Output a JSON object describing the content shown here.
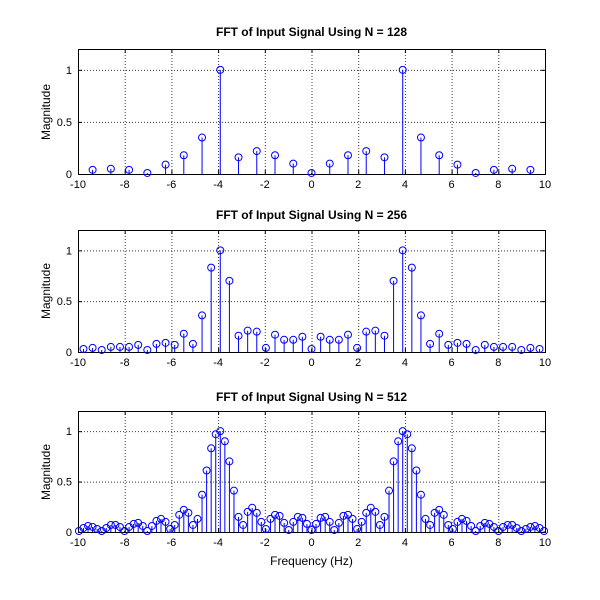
{
  "figure": {
    "background": "#ffffff",
    "axis_color": "#000000",
    "grid_color": "#3a3a3a",
    "stem_color": "#0000ff"
  },
  "chart_data": [
    {
      "type": "stem",
      "title": "FFT of Input Signal Using N = 128",
      "xlabel": "",
      "ylabel": "Magnitude",
      "xlim": [
        -10,
        10
      ],
      "ylim": [
        0,
        1.2
      ],
      "xticks": [
        -10,
        -8,
        -6,
        -4,
        -2,
        0,
        2,
        4,
        6,
        8,
        10
      ],
      "yticks": [
        0,
        0.5,
        1
      ],
      "grid": true,
      "x": [
        -9.375,
        -8.5938,
        -7.8125,
        -7.0313,
        -6.25,
        -5.4688,
        -4.6875,
        -3.9063,
        -3.125,
        -2.3438,
        -1.5625,
        -0.7813,
        0,
        0.7813,
        1.5625,
        2.3438,
        3.125,
        3.9063,
        4.6875,
        5.4688,
        6.25,
        7.0313,
        7.8125,
        8.5938,
        9.375
      ],
      "y": [
        0.04,
        0.05,
        0.04,
        0.01,
        0.09,
        0.18,
        0.35,
        1.0,
        0.16,
        0.22,
        0.18,
        0.1,
        0.01,
        0.1,
        0.18,
        0.22,
        0.16,
        1.0,
        0.35,
        0.18,
        0.09,
        0.01,
        0.04,
        0.05,
        0.04
      ]
    },
    {
      "type": "stem",
      "title": "FFT of Input Signal Using N = 256",
      "xlabel": "",
      "ylabel": "Magnitude",
      "xlim": [
        -10,
        10
      ],
      "ylim": [
        0,
        1.2
      ],
      "xticks": [
        -10,
        -8,
        -6,
        -4,
        -2,
        0,
        2,
        4,
        6,
        8,
        10
      ],
      "yticks": [
        0,
        0.5,
        1
      ],
      "grid": true,
      "x": [
        -9.7656,
        -9.375,
        -8.9844,
        -8.5938,
        -8.2031,
        -7.8125,
        -7.4219,
        -7.0313,
        -6.6406,
        -6.25,
        -5.8594,
        -5.4688,
        -5.0781,
        -4.6875,
        -4.2969,
        -3.9063,
        -3.5156,
        -3.125,
        -2.7344,
        -2.3438,
        -1.9531,
        -1.5625,
        -1.1719,
        -0.7813,
        -0.3906,
        0,
        0.3906,
        0.7813,
        1.1719,
        1.5625,
        1.9531,
        2.3438,
        2.7344,
        3.125,
        3.5156,
        3.9063,
        4.2969,
        4.6875,
        5.0781,
        5.4688,
        5.8594,
        6.25,
        6.6406,
        7.0313,
        7.4219,
        7.8125,
        8.2031,
        8.5938,
        8.9844,
        9.375,
        9.7656
      ],
      "y": [
        0.03,
        0.04,
        0.02,
        0.05,
        0.05,
        0.05,
        0.07,
        0.02,
        0.08,
        0.09,
        0.07,
        0.18,
        0.08,
        0.36,
        0.83,
        1.0,
        0.7,
        0.16,
        0.21,
        0.2,
        0.04,
        0.17,
        0.12,
        0.12,
        0.15,
        0.03,
        0.15,
        0.12,
        0.12,
        0.17,
        0.04,
        0.2,
        0.21,
        0.16,
        0.7,
        1.0,
        0.83,
        0.36,
        0.08,
        0.18,
        0.07,
        0.09,
        0.08,
        0.02,
        0.07,
        0.05,
        0.05,
        0.05,
        0.02,
        0.04,
        0.03
      ]
    },
    {
      "type": "stem",
      "title": "FFT of Input Signal Using N = 512",
      "xlabel": "Frequency (Hz)",
      "ylabel": "Magnitude",
      "xlim": [
        -10,
        10
      ],
      "ylim": [
        0,
        1.2
      ],
      "xticks": [
        -10,
        -8,
        -6,
        -4,
        -2,
        0,
        2,
        4,
        6,
        8,
        10
      ],
      "yticks": [
        0,
        0.5,
        1
      ],
      "grid": true,
      "x": [
        -9.9609,
        -9.7656,
        -9.5703,
        -9.375,
        -9.1797,
        -8.9844,
        -8.7891,
        -8.5938,
        -8.3984,
        -8.2031,
        -8.0078,
        -7.8125,
        -7.6172,
        -7.4219,
        -7.2266,
        -7.0313,
        -6.8359,
        -6.6406,
        -6.4453,
        -6.25,
        -6.0547,
        -5.8594,
        -5.6641,
        -5.4688,
        -5.2734,
        -5.0781,
        -4.8828,
        -4.6875,
        -4.4922,
        -4.2969,
        -4.1016,
        -3.9063,
        -3.7109,
        -3.5156,
        -3.3203,
        -3.125,
        -2.9297,
        -2.7344,
        -2.5391,
        -2.3438,
        -2.1484,
        -1.9531,
        -1.7578,
        -1.5625,
        -1.3672,
        -1.1719,
        -0.9766,
        -0.7813,
        -0.5859,
        -0.3906,
        -0.1953,
        0,
        0.1953,
        0.3906,
        0.5859,
        0.7813,
        0.9766,
        1.1719,
        1.3672,
        1.5625,
        1.7578,
        1.9531,
        2.1484,
        2.3438,
        2.5391,
        2.7344,
        2.9297,
        3.125,
        3.3203,
        3.5156,
        3.7109,
        3.9063,
        4.1016,
        4.2969,
        4.4922,
        4.6875,
        4.8828,
        5.0781,
        5.2734,
        5.4688,
        5.6641,
        5.8594,
        6.0547,
        6.25,
        6.4453,
        6.6406,
        6.8359,
        7.0313,
        7.2266,
        7.4219,
        7.6172,
        7.8125,
        8.0078,
        8.2031,
        8.3984,
        8.5938,
        8.7891,
        8.9844,
        9.1797,
        9.375,
        9.5703,
        9.7656,
        9.9609
      ],
      "y": [
        0.01,
        0.04,
        0.06,
        0.05,
        0.03,
        0.01,
        0.04,
        0.07,
        0.07,
        0.05,
        0.01,
        0.05,
        0.08,
        0.09,
        0.06,
        0.01,
        0.06,
        0.11,
        0.13,
        0.1,
        0.03,
        0.07,
        0.17,
        0.22,
        0.19,
        0.07,
        0.13,
        0.37,
        0.61,
        0.83,
        0.97,
        1.0,
        0.9,
        0.7,
        0.41,
        0.15,
        0.07,
        0.2,
        0.24,
        0.19,
        0.1,
        0.03,
        0.13,
        0.17,
        0.16,
        0.09,
        0.02,
        0.1,
        0.15,
        0.14,
        0.08,
        0.02,
        0.08,
        0.14,
        0.15,
        0.1,
        0.02,
        0.09,
        0.16,
        0.17,
        0.13,
        0.03,
        0.1,
        0.19,
        0.24,
        0.2,
        0.07,
        0.15,
        0.41,
        0.7,
        0.9,
        1.0,
        0.97,
        0.83,
        0.61,
        0.37,
        0.13,
        0.07,
        0.19,
        0.22,
        0.17,
        0.07,
        0.03,
        0.1,
        0.13,
        0.11,
        0.06,
        0.01,
        0.06,
        0.09,
        0.08,
        0.05,
        0.01,
        0.05,
        0.07,
        0.07,
        0.04,
        0.01,
        0.03,
        0.05,
        0.06,
        0.04,
        0.01
      ]
    }
  ]
}
